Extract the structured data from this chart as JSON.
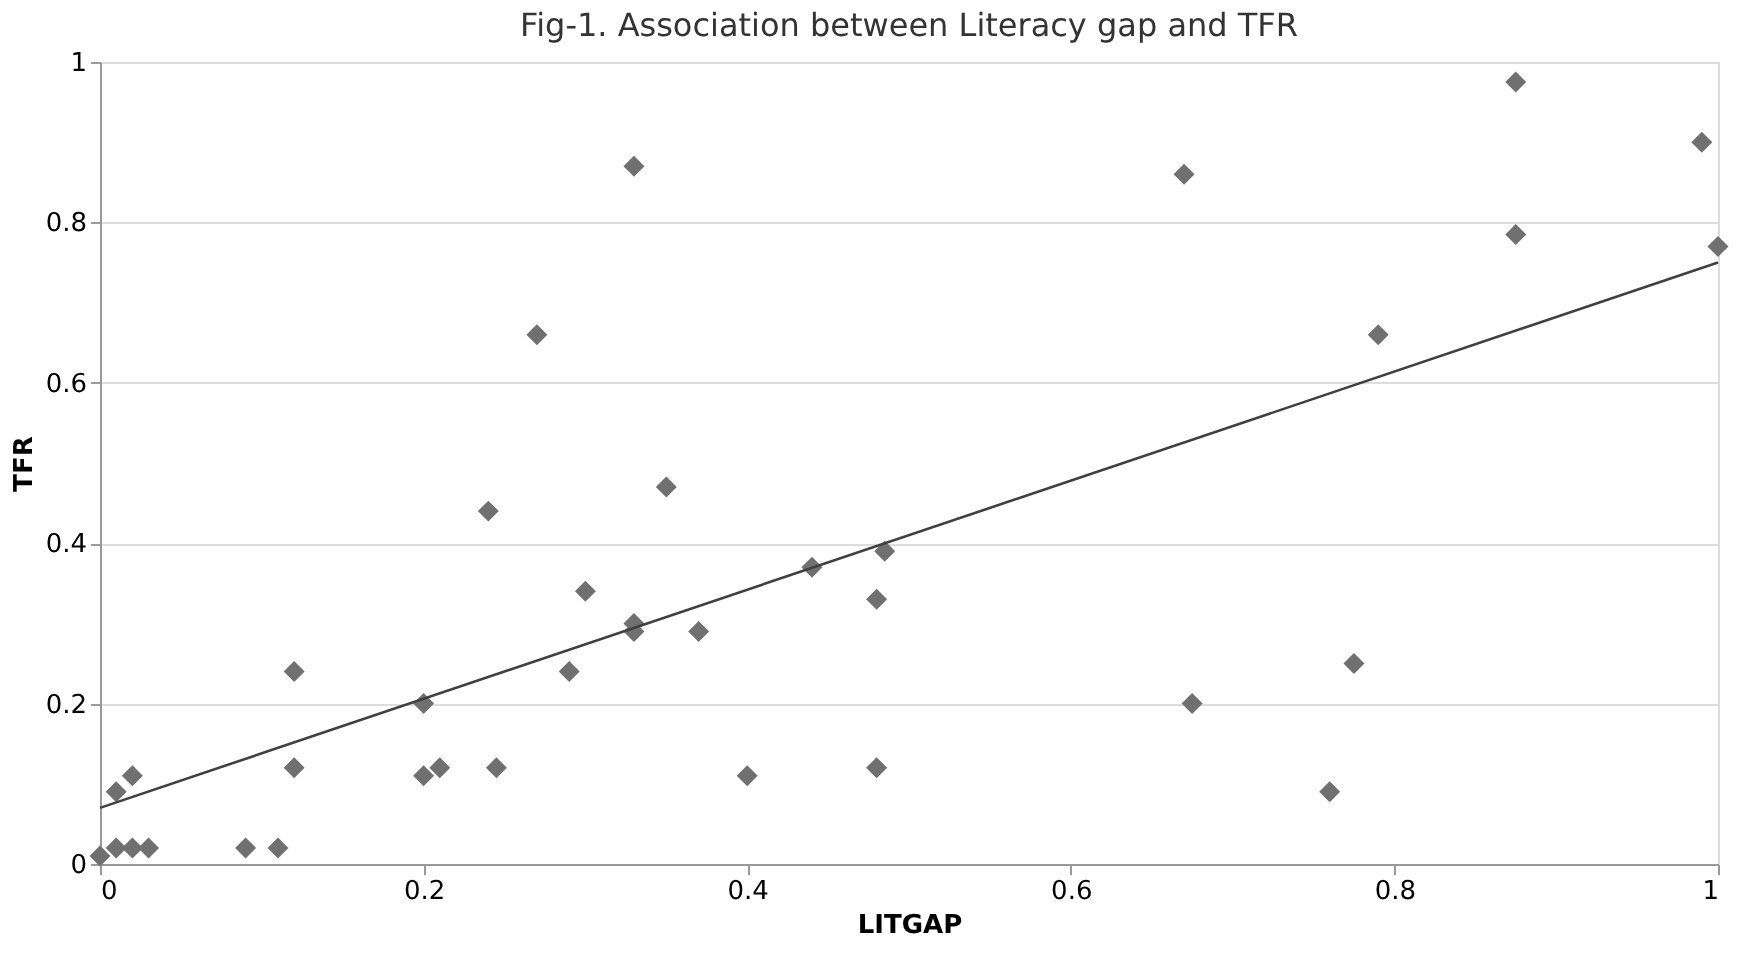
{
  "chart_data": {
    "type": "scatter",
    "title": "Fig-1. Association between Literacy gap and TFR",
    "xlabel": "LITGAP",
    "ylabel": "TFR",
    "xlim": [
      0,
      1
    ],
    "ylim": [
      0,
      1
    ],
    "xticks": [
      0,
      0.2,
      0.4,
      0.6,
      0.8,
      1
    ],
    "yticks": [
      0,
      0.2,
      0.4,
      0.6,
      0.8,
      1
    ],
    "grid": "y",
    "series": [
      {
        "color": "#707070",
        "marker": "diamond",
        "x": [
          0,
          0.01,
          0.02,
          0.03,
          0.01,
          0.02,
          0.09,
          0.11,
          0.12,
          0.12,
          0.2,
          0.2,
          0.21,
          0.245,
          0.24,
          0.27,
          0.33,
          0.3,
          0.29,
          0.33,
          0.33,
          0.35,
          0.37,
          0.4,
          0.44,
          0.48,
          0.485,
          0.48,
          0.67,
          0.675,
          0.79,
          0.775,
          0.76,
          0.875,
          0.875,
          0.99,
          1
        ],
        "values": [
          0.01,
          0.02,
          0.02,
          0.02,
          0.09,
          0.11,
          0.02,
          0.02,
          0.24,
          0.12,
          0.2,
          0.11,
          0.12,
          0.12,
          0.44,
          0.66,
          0.87,
          0.34,
          0.24,
          0.3,
          0.29,
          0.47,
          0.29,
          0.11,
          0.37,
          0.33,
          0.39,
          0.12,
          0.86,
          0.2,
          0.66,
          0.25,
          0.09,
          0.975,
          0.785,
          0.9,
          0.77
        ]
      },
      {
        "type": "line",
        "color": "#404040",
        "line_style": "solid",
        "x": [
          0,
          1
        ],
        "values": [
          0.07,
          0.75
        ]
      }
    ]
  }
}
